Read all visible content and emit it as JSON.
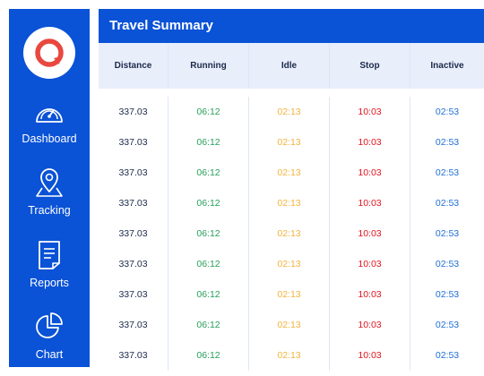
{
  "sidebar": {
    "logo_icon": "map-pin-logo",
    "items": [
      {
        "label": "Dashboard",
        "icon": "speedometer-icon"
      },
      {
        "label": "Tracking",
        "icon": "location-pin-icon"
      },
      {
        "label": "Reports",
        "icon": "document-icon"
      },
      {
        "label": "Chart",
        "icon": "pie-chart-icon"
      }
    ]
  },
  "main": {
    "title": "Travel Summary",
    "columns": [
      "Distance",
      "Running",
      "Idle",
      "Stop",
      "Inactive"
    ],
    "rows": [
      [
        "337.03",
        "06:12",
        "02:13",
        "10:03",
        "02:53"
      ],
      [
        "337.03",
        "06:12",
        "02:13",
        "10:03",
        "02:53"
      ],
      [
        "337.03",
        "06:12",
        "02:13",
        "10:03",
        "02:53"
      ],
      [
        "337.03",
        "06:12",
        "02:13",
        "10:03",
        "02:53"
      ],
      [
        "337.03",
        "06:12",
        "02:13",
        "10:03",
        "02:53"
      ],
      [
        "337.03",
        "06:12",
        "02:13",
        "10:03",
        "02:53"
      ],
      [
        "337.03",
        "06:12",
        "02:13",
        "10:03",
        "02:53"
      ],
      [
        "337.03",
        "06:12",
        "02:13",
        "10:03",
        "02:53"
      ],
      [
        "337.03",
        "06:12",
        "02:13",
        "10:03",
        "02:53"
      ]
    ]
  },
  "colors": {
    "brand": "#0a52d6",
    "running": "#25a05a",
    "idle": "#f2b33d",
    "stop": "#e0141e",
    "inactive": "#1f6fd6",
    "logo": "#e8483f"
  }
}
